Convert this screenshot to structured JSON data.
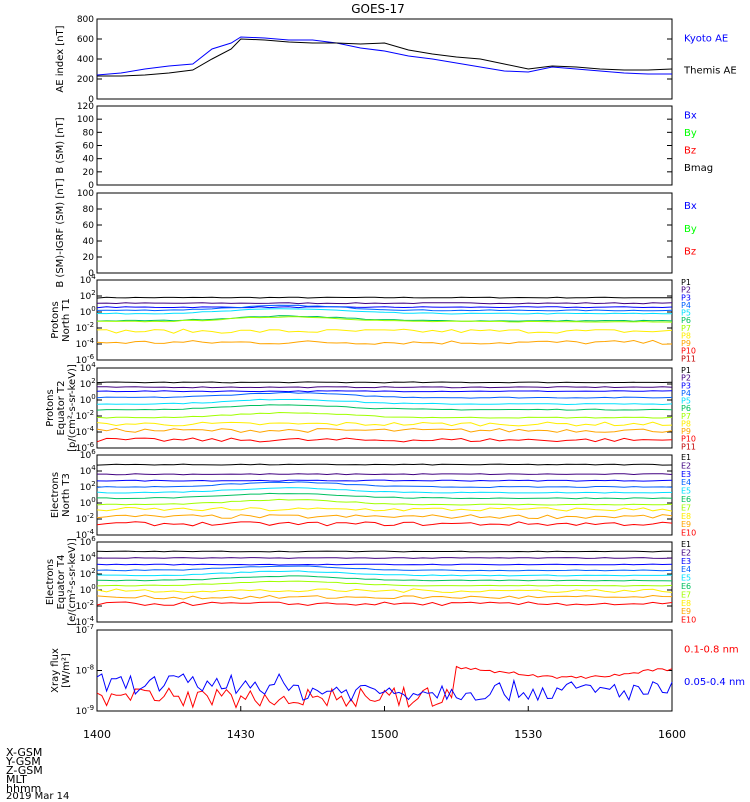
{
  "title": "GOES-17",
  "footer": {
    "coords": [
      "X-GSM",
      "Y-GSM",
      "Z-GSM",
      "MLT",
      "hhmm"
    ],
    "date": "2019 Mar 14"
  },
  "x_ticks": [
    "1400",
    "1430",
    "1500",
    "1530",
    "1600"
  ],
  "colors": {
    "black": "#000000",
    "blue": "#0000ff",
    "red": "#ff0000",
    "green": "#00ff00",
    "orange": "#ffa500",
    "yellow": "#e0e000",
    "cyan": "#00e0ff"
  },
  "chart_data": [
    {
      "type": "line",
      "ylabel": "AE index [nT]",
      "y_ticks": [
        "800",
        "600",
        "400",
        "200",
        "0"
      ],
      "ylim": [
        0,
        800
      ],
      "x": [
        1400,
        1405,
        1410,
        1415,
        1420,
        1424,
        1428,
        1430,
        1435,
        1440,
        1445,
        1450,
        1455,
        1500,
        1505,
        1510,
        1515,
        1520,
        1525,
        1530,
        1535,
        1540,
        1545,
        1550,
        1555,
        1600
      ],
      "series": [
        {
          "name": "Kyoto AE",
          "color": "#0000ff",
          "values": [
            240,
            260,
            300,
            330,
            350,
            500,
            560,
            620,
            610,
            590,
            590,
            560,
            510,
            480,
            430,
            400,
            360,
            320,
            280,
            270,
            320,
            300,
            280,
            260,
            250,
            250
          ]
        },
        {
          "name": "Themis AE",
          "color": "#000000",
          "values": [
            230,
            230,
            240,
            260,
            290,
            400,
            500,
            600,
            590,
            570,
            560,
            560,
            550,
            560,
            490,
            450,
            420,
            400,
            350,
            300,
            330,
            320,
            300,
            290,
            290,
            300
          ]
        }
      ]
    },
    {
      "type": "line",
      "ylabel": "B (SM) [nT]",
      "y_ticks": [
        "120",
        "100",
        "80",
        "60",
        "40",
        "20",
        "0"
      ],
      "ylim": [
        0,
        120
      ],
      "series": [
        {
          "name": "Bx",
          "color": "#0000ff",
          "values": []
        },
        {
          "name": "By",
          "color": "#00ff00",
          "values": []
        },
        {
          "name": "Bz",
          "color": "#ff0000",
          "values": []
        },
        {
          "name": "Bmag",
          "color": "#000000",
          "values": []
        }
      ]
    },
    {
      "type": "line",
      "ylabel": "B (SM)-IGRF (SM) [nT]",
      "y_ticks": [
        "100",
        "80",
        "60",
        "40",
        "20",
        "0"
      ],
      "ylim": [
        0,
        100
      ],
      "series": [
        {
          "name": "Bx",
          "color": "#0000ff",
          "values": []
        },
        {
          "name": "By",
          "color": "#00ff00",
          "values": []
        },
        {
          "name": "Bz",
          "color": "#ff0000",
          "values": []
        }
      ]
    },
    {
      "type": "line",
      "ylabel_lines": [
        "Protons",
        "North T1"
      ],
      "y_ticks": [
        "10^4",
        "10^2",
        "10^0",
        "10^-2",
        "10^-4",
        "10^-6"
      ],
      "log_range": [
        -6,
        4
      ],
      "channels": [
        "P1",
        "P2",
        "P3",
        "P4",
        "P5",
        "P6",
        "P7",
        "P8",
        "P9",
        "P10",
        "P11"
      ],
      "channel_colors": [
        "#000000",
        "#400080",
        "#0000ff",
        "#0060ff",
        "#00e0ff",
        "#00c060",
        "#a0ff00",
        "#ffee00",
        "#ffa500",
        "#ff0000",
        "#c00000"
      ],
      "log_levels": [
        1.8,
        1.1,
        0.6,
        0.2,
        -0.2,
        -1.1,
        -1.2,
        -2.4,
        -3.8,
        null,
        null
      ]
    },
    {
      "type": "line",
      "ylabel_lines": [
        "Protons",
        "Equator T2",
        "[p/(cm²-s-sr-keV)]"
      ],
      "y_ticks": [
        "10^4",
        "10^2",
        "10^0",
        "10^-2",
        "10^-4",
        "10^-6"
      ],
      "log_range": [
        -6,
        4
      ],
      "channels": [
        "P1",
        "P2",
        "P3",
        "P4",
        "P5",
        "P6",
        "P7",
        "P8",
        "P9",
        "P10",
        "P11"
      ],
      "channel_colors": [
        "#000000",
        "#400080",
        "#0000ff",
        "#0060ff",
        "#00e0ff",
        "#00c060",
        "#a0ff00",
        "#ffee00",
        "#ffa500",
        "#ff0000",
        "#c00000"
      ],
      "log_levels": [
        2.2,
        1.6,
        1.1,
        0.3,
        -0.5,
        -1.2,
        -2.2,
        -3.0,
        -3.8,
        -5.0,
        null
      ]
    },
    {
      "type": "line",
      "ylabel_lines": [
        "Electrons",
        "North T3"
      ],
      "y_ticks": [
        "10^6",
        "10^4",
        "10^2",
        "10^0",
        "10^-2",
        "10^-4"
      ],
      "log_range": [
        -4,
        6
      ],
      "channels": [
        "E1",
        "E2",
        "E3",
        "E4",
        "E5",
        "E6",
        "E7",
        "E8",
        "E9",
        "E10"
      ],
      "channel_colors": [
        "#000000",
        "#400080",
        "#0000ff",
        "#0060ff",
        "#00e0ff",
        "#00c060",
        "#a0ff00",
        "#ffee00",
        "#ffa500",
        "#ff0000"
      ],
      "log_levels": [
        4.8,
        3.6,
        2.8,
        2.0,
        1.3,
        0.6,
        -0.2,
        -0.8,
        -1.7,
        -2.6
      ]
    },
    {
      "type": "line",
      "ylabel_lines": [
        "Electrons",
        "Equator T4",
        "[e/(cm²-s-sr-keV)]"
      ],
      "y_ticks": [
        "10^6",
        "10^4",
        "10^2",
        "10^0",
        "10^-2",
        "10^-4"
      ],
      "log_range": [
        -5,
        6
      ],
      "channels": [
        "E1",
        "E2",
        "E3",
        "E4",
        "E5",
        "E6",
        "E7",
        "E8",
        "E9",
        "E10"
      ],
      "channel_colors": [
        "#000000",
        "#400080",
        "#0000ff",
        "#0060ff",
        "#00e0ff",
        "#00c060",
        "#a0ff00",
        "#ffee00",
        "#ffa500",
        "#ff0000"
      ],
      "log_levels": [
        4.7,
        3.8,
        2.9,
        2.1,
        1.4,
        0.7,
        0.0,
        -0.7,
        -1.6,
        -2.5
      ]
    },
    {
      "type": "line",
      "ylabel_lines": [
        "Xray flux",
        "[W/m²]"
      ],
      "y_ticks": [
        "10^-7",
        "10^-8",
        "10^-9"
      ],
      "log_range": [
        -9.4,
        -7
      ],
      "series": [
        {
          "name": "0.1-0.8 nm",
          "color": "#ff0000"
        },
        {
          "name": "0.05-0.4 nm",
          "color": "#0000ff"
        }
      ]
    }
  ]
}
